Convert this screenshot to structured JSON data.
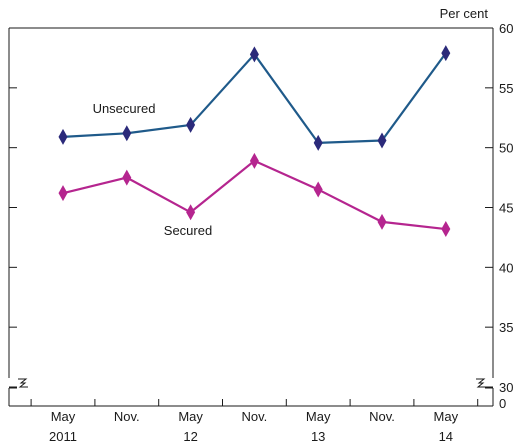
{
  "chart_data": {
    "type": "line",
    "unit_label": "Per cent",
    "x_tick_labels": [
      "May",
      "Nov.",
      "May",
      "Nov.",
      "May",
      "Nov.",
      "May"
    ],
    "year_labels": [
      {
        "label": "2011",
        "index": 0
      },
      {
        "label": "12",
        "index": 2
      },
      {
        "label": "13",
        "index": 4
      },
      {
        "label": "14",
        "index": 6
      }
    ],
    "y_ticks": [
      0,
      30,
      35,
      40,
      45,
      50,
      55,
      60
    ],
    "ylim": [
      30,
      60
    ],
    "y_axis_break": true,
    "y_axis_side": "right",
    "series": [
      {
        "name": "Unsecured",
        "color": "#1f5a8a",
        "marker_color": "#2b2a7a",
        "values": [
          50.9,
          51.2,
          51.9,
          57.8,
          50.4,
          50.6,
          57.9
        ]
      },
      {
        "name": "Secured",
        "color": "#b5258f",
        "marker_color": "#b5258f",
        "values": [
          46.2,
          47.5,
          44.6,
          48.9,
          46.5,
          43.8,
          43.2
        ]
      }
    ]
  }
}
